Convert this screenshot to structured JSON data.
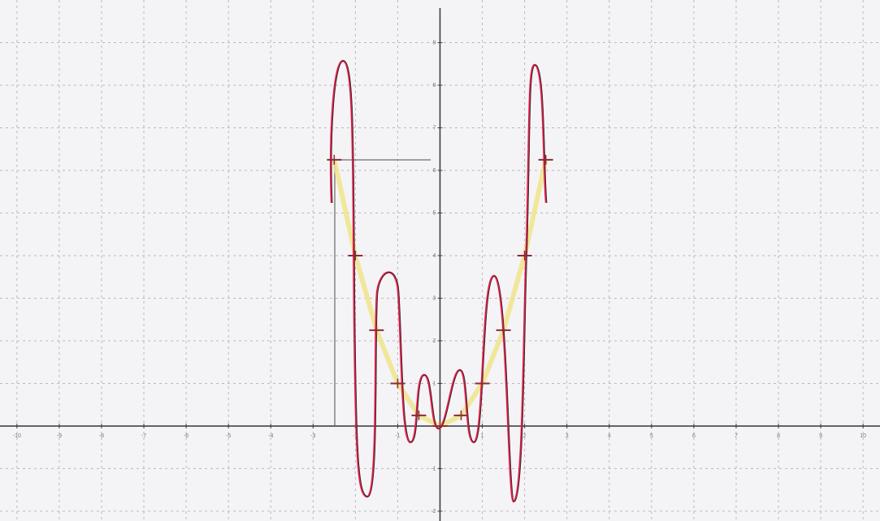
{
  "chart_data": {
    "type": "scatter",
    "x": [
      -2.5,
      -2,
      -1.5,
      -1,
      -0.5,
      0,
      0.5,
      1,
      1.5,
      2,
      2.5
    ],
    "values": [
      6.25,
      4,
      2.25,
      1,
      0.25,
      0,
      0.25,
      1,
      2.25,
      4,
      6.25
    ],
    "color": "#8b2b3a",
    "line_color": "#f0e48a",
    "xlim": [
      -10.4,
      10.4
    ],
    "ylim": [
      -2.23,
      10
    ],
    "xticks": [
      -10,
      -9,
      -8,
      -7,
      -6,
      -5,
      -4,
      -3,
      -2,
      -1,
      1,
      2,
      3,
      4,
      5,
      6,
      7,
      8,
      9,
      10
    ],
    "yticks": [
      -2,
      -1,
      1,
      2,
      3,
      4,
      5,
      6,
      7,
      8,
      9
    ],
    "grid": true
  }
}
